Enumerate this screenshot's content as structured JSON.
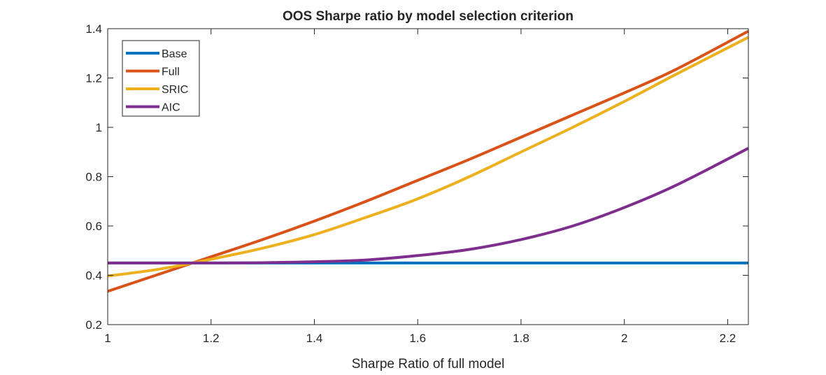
{
  "chart_data": {
    "type": "line",
    "title": "OOS Sharpe ratio by model selection criterion",
    "xlabel": "Sharpe Ratio of full model",
    "ylabel": "",
    "xlim": [
      1,
      2.24
    ],
    "ylim": [
      0.2,
      1.4
    ],
    "xticks": [
      1,
      1.2,
      1.4,
      1.6,
      1.8,
      2,
      2.2
    ],
    "xtick_labels": [
      "1",
      "1.2",
      "1.4",
      "1.6",
      "1.8",
      "2",
      "2.2"
    ],
    "yticks": [
      0.2,
      0.4,
      0.6,
      0.8,
      1,
      1.2,
      1.4
    ],
    "ytick_labels": [
      "0.2",
      "0.4",
      "0.6",
      "0.8",
      "1",
      "1.2",
      "1.4"
    ],
    "grid": false,
    "legend_position": "top-left",
    "x": [
      1.0,
      1.1,
      1.2,
      1.3,
      1.4,
      1.5,
      1.6,
      1.7,
      1.8,
      1.9,
      2.0,
      2.1,
      2.24
    ],
    "series": [
      {
        "name": "Base",
        "color": "#0072BD",
        "values": [
          0.45,
          0.45,
          0.45,
          0.45,
          0.45,
          0.45,
          0.45,
          0.45,
          0.45,
          0.45,
          0.45,
          0.45,
          0.45
        ]
      },
      {
        "name": "Full",
        "color": "#D95319",
        "values": [
          0.335,
          0.405,
          0.475,
          0.545,
          0.62,
          0.7,
          0.785,
          0.87,
          0.96,
          1.05,
          1.14,
          1.235,
          1.39
        ]
      },
      {
        "name": "SRIC",
        "color": "#EDB120",
        "values": [
          0.397,
          0.425,
          0.465,
          0.51,
          0.565,
          0.635,
          0.71,
          0.8,
          0.9,
          1.0,
          1.105,
          1.215,
          1.365
        ]
      },
      {
        "name": "AIC",
        "color": "#7E2F8E",
        "values": [
          0.45,
          0.45,
          0.45,
          0.451,
          0.455,
          0.462,
          0.48,
          0.505,
          0.545,
          0.6,
          0.675,
          0.765,
          0.915
        ]
      }
    ]
  }
}
